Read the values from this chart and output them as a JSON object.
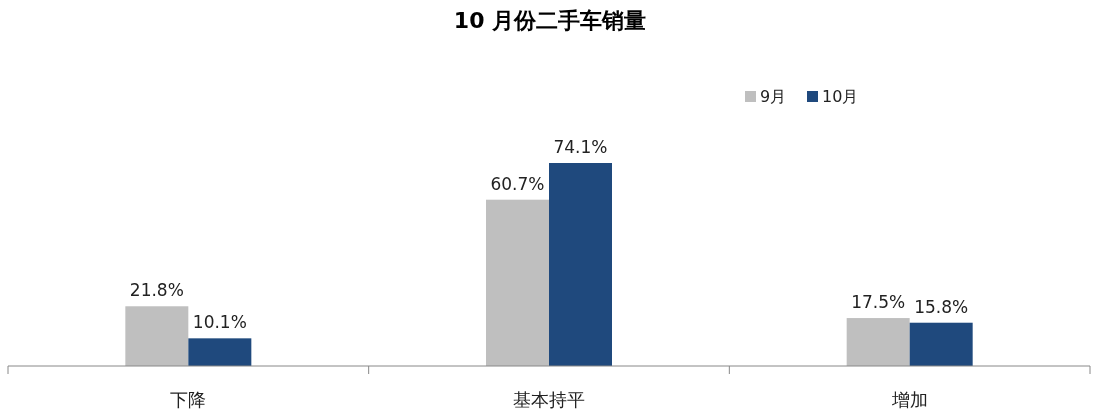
{
  "chart_data": {
    "type": "bar",
    "title": "10 月份二手车销量",
    "categories": [
      "下降",
      "基本持平",
      "增加"
    ],
    "series": [
      {
        "name": "9月",
        "color": "#bfbfbf",
        "values": [
          21.8,
          60.7,
          17.5
        ],
        "value_labels": [
          "21.8%",
          "60.7%",
          "17.5%"
        ]
      },
      {
        "name": "10月",
        "color": "#1f497d",
        "values": [
          10.1,
          74.1,
          15.8
        ],
        "value_labels": [
          "10.1%",
          "74.1%",
          "15.8%"
        ]
      }
    ],
    "legend": "top right"
  }
}
